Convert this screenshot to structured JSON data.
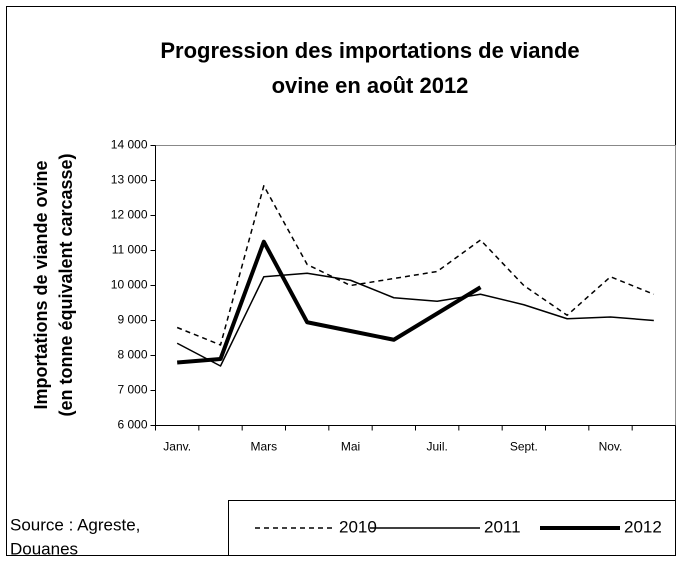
{
  "chart_data": {
    "type": "line",
    "title": [
      "Progression des importations de viande",
      "ovine en août 2012"
    ],
    "y_label": [
      "Importations de viande ovine",
      "(en tonne équivalent carcasse)"
    ],
    "source": [
      "Source : Agreste,",
      "Douanes"
    ],
    "categories": [
      "Janv.",
      null,
      "Mars",
      null,
      "Mai",
      null,
      "Juil.",
      null,
      "Sept.",
      null,
      "Nov.",
      null
    ],
    "series": [
      {
        "name": "2010",
        "color": "#000000",
        "style": "dashed",
        "values": [
          8800,
          8300,
          12850,
          10600,
          10000,
          10200,
          10400,
          11300,
          10000,
          9150,
          10250,
          9750
        ]
      },
      {
        "name": "2011",
        "color": "#000000",
        "style": "solid",
        "values": [
          8350,
          7700,
          10250,
          10350,
          10150,
          9650,
          9550,
          9750,
          9450,
          9050,
          9100,
          9000
        ]
      },
      {
        "name": "2012",
        "color": "#000000",
        "style": "thick",
        "values": [
          7800,
          7900,
          11250,
          8950,
          8700,
          8450,
          9200,
          9950,
          null,
          null,
          null,
          null
        ]
      }
    ],
    "ylim": [
      6000,
      14000
    ],
    "yticks": [
      {
        "value": 6000,
        "label": "6 000"
      },
      {
        "value": 7000,
        "label": "7 000"
      },
      {
        "value": 8000,
        "label": "8 000"
      },
      {
        "value": 9000,
        "label": "9 000"
      },
      {
        "value": 10000,
        "label": "10 000"
      },
      {
        "value": 11000,
        "label": "11 000"
      },
      {
        "value": 12000,
        "label": "12 000"
      },
      {
        "value": 13000,
        "label": "13 000"
      },
      {
        "value": 14000,
        "label": "14 000"
      }
    ],
    "grid": false,
    "legend": "bottom"
  }
}
